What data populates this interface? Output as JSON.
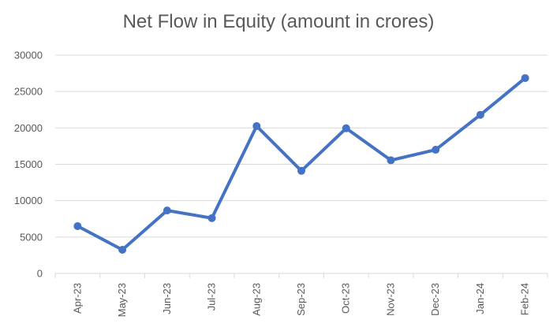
{
  "chart_data": {
    "type": "line",
    "title": "Net Flow in Equity (amount in crores)",
    "xlabel": "",
    "ylabel": "",
    "categories": [
      "Apr-23",
      "May-23",
      "Jun-23",
      "Jul-23",
      "Aug-23",
      "Sep-23",
      "Oct-23",
      "Nov-23",
      "Dec-23",
      "Jan-24",
      "Feb-24"
    ],
    "series": [
      {
        "values": [
          6500,
          3250,
          8650,
          7600,
          20250,
          14100,
          19950,
          15550,
          17000,
          21800,
          26850
        ],
        "color": "#4472C4"
      }
    ],
    "ylim": [
      0,
      30000
    ],
    "yticks": [
      0,
      5000,
      10000,
      15000,
      20000,
      25000,
      30000
    ],
    "grid": true,
    "legend": "none",
    "gridline_color": "#D9D9D9",
    "text_color": "#595959"
  }
}
